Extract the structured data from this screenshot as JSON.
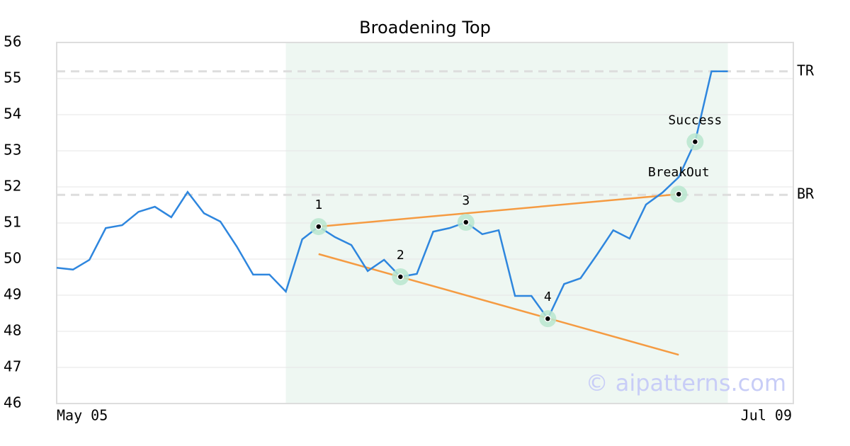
{
  "chart_data": {
    "type": "line",
    "title": "Broadening Top",
    "watermark": "© aipatterns.com",
    "x": [
      0,
      1,
      2,
      3,
      4,
      5,
      6,
      7,
      8,
      9,
      10,
      11,
      12,
      13,
      14,
      15,
      16,
      17,
      18,
      19,
      20,
      21,
      22,
      23,
      24,
      25,
      26,
      27,
      28,
      29,
      30,
      31,
      32,
      33,
      34,
      35,
      36,
      37,
      38,
      39,
      40,
      41
    ],
    "series": [
      {
        "color": "#2e86de",
        "values": [
          49.76,
          49.71,
          49.98,
          50.86,
          50.94,
          51.31,
          51.45,
          51.16,
          51.86,
          51.27,
          51.04,
          50.35,
          49.57,
          49.57,
          49.1,
          50.55,
          50.9,
          50.61,
          50.39,
          49.67,
          49.98,
          49.51,
          49.59,
          50.76,
          50.86,
          51.02,
          50.69,
          50.8,
          48.98,
          48.98,
          48.35,
          49.31,
          49.47,
          50.12,
          50.8,
          50.57,
          51.51,
          51.84,
          52.27,
          53.25,
          55.2,
          55.2
        ]
      }
    ],
    "xlim": [
      0,
      45
    ],
    "xticks": [
      {
        "value": 0,
        "label": "May 05"
      },
      {
        "value": 45,
        "label": "Jul 09"
      }
    ],
    "ylim": [
      46,
      56
    ],
    "yticks": [
      46,
      47,
      48,
      49,
      50,
      51,
      52,
      53,
      54,
      55,
      56
    ],
    "grid": true,
    "highlight": {
      "x": [
        14,
        41
      ],
      "color": "#eef7f2"
    },
    "hlines": [
      {
        "label": "TR",
        "value": 55.2
      },
      {
        "label": "BR",
        "value": 51.78
      }
    ],
    "trendlines": [
      {
        "color": "#f59b42",
        "x": [
          16,
          38
        ],
        "values": [
          50.9,
          51.8
        ]
      },
      {
        "color": "#f59b42",
        "x": [
          16,
          38
        ],
        "values": [
          50.14,
          47.35
        ]
      }
    ],
    "points": [
      {
        "label": "1",
        "x": 16,
        "value": 50.9
      },
      {
        "label": "2",
        "x": 21,
        "value": 49.51
      },
      {
        "label": "3",
        "x": 25,
        "value": 51.02
      },
      {
        "label": "4",
        "x": 30,
        "value": 48.35
      },
      {
        "label": "BreakOut",
        "x": 38,
        "value": 51.8
      },
      {
        "label": "Success",
        "x": 39,
        "value": 53.25
      }
    ]
  }
}
